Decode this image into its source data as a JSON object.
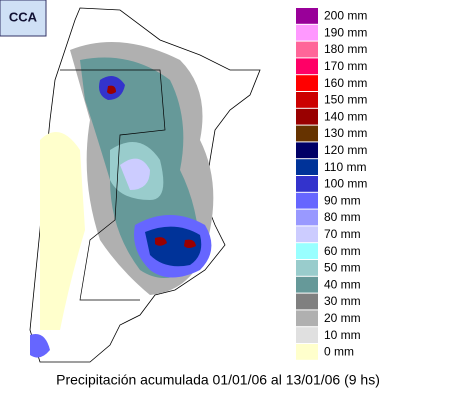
{
  "logo": "CCA",
  "title": "Precipitación acumulada 01/01/06 al 13/01/06 (9 hs)",
  "legend": {
    "items": [
      {
        "label": "200 mm",
        "color": "#990099"
      },
      {
        "label": "190 mm",
        "color": "#ff99ff"
      },
      {
        "label": "180 mm",
        "color": "#ff6699"
      },
      {
        "label": "170 mm",
        "color": "#ff0066"
      },
      {
        "label": "160 mm",
        "color": "#ff0000"
      },
      {
        "label": "150 mm",
        "color": "#cc0000"
      },
      {
        "label": "140 mm",
        "color": "#990000"
      },
      {
        "label": "130 mm",
        "color": "#663300"
      },
      {
        "label": "120 mm",
        "color": "#000066"
      },
      {
        "label": "110 mm",
        "color": "#003399"
      },
      {
        "label": "100 mm",
        "color": "#3333cc"
      },
      {
        "label": "90 mm",
        "color": "#6666ff"
      },
      {
        "label": "80 mm",
        "color": "#9999ff"
      },
      {
        "label": "70 mm",
        "color": "#ccccff"
      },
      {
        "label": "60 mm",
        "color": "#99ffff"
      },
      {
        "label": "50 mm",
        "color": "#99cccc"
      },
      {
        "label": "40 mm",
        "color": "#669999"
      },
      {
        "label": "30 mm",
        "color": "#808080"
      },
      {
        "label": "20 mm",
        "color": "#b0b0b0"
      },
      {
        "label": "10 mm",
        "color": "#e0e0e0"
      },
      {
        "label": "0 mm",
        "color": "#ffffcc"
      }
    ]
  }
}
